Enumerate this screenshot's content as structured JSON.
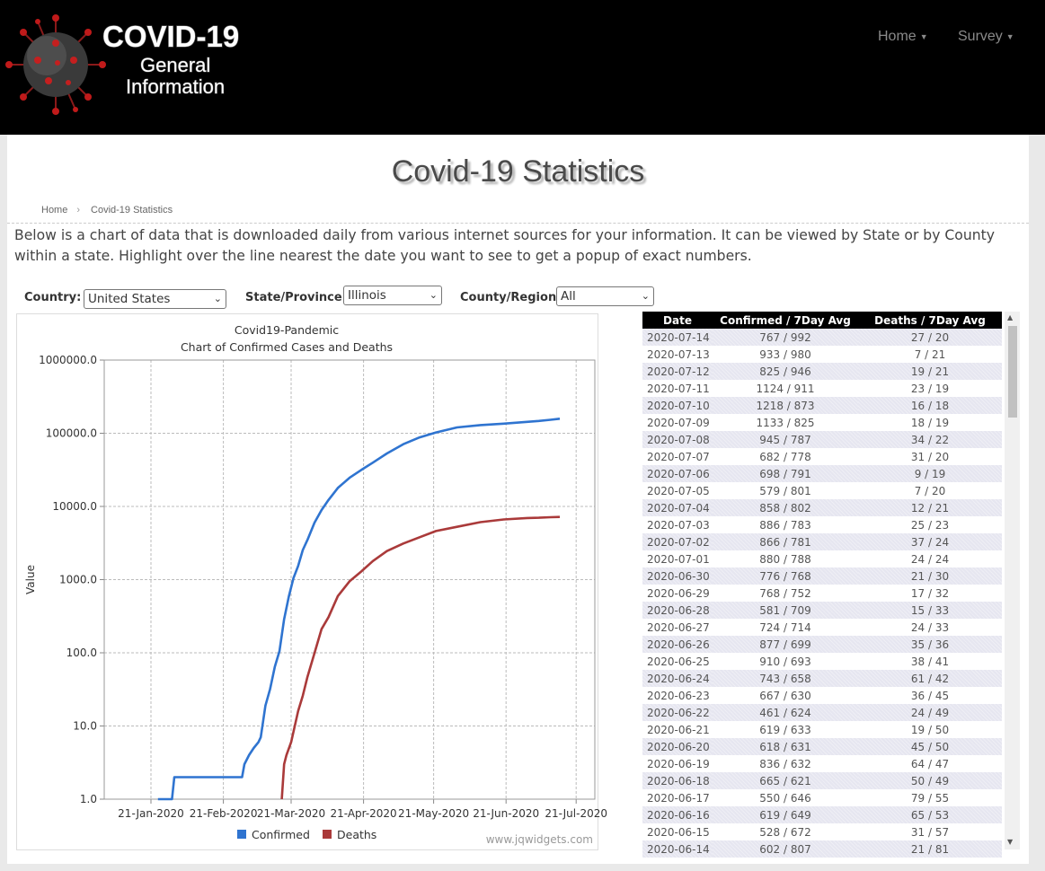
{
  "logo": {
    "line1": "COVID-19",
    "line2": "General",
    "line3": "Information"
  },
  "nav": [
    {
      "label": "Home"
    },
    {
      "label": "Survey"
    }
  ],
  "page_title": "Covid-19 Statistics",
  "breadcrumb": {
    "home": "Home",
    "current": "Covid-19 Statistics"
  },
  "intro": "Below is a chart of data that is downloaded daily from various internet sources for your information. It can be viewed by State or by County within a state. Highlight over the line nearest the date you want to see to get a popup of exact numbers.",
  "filters": {
    "country_label": "Country:",
    "country_value": "United States",
    "state_label": "State/Province:",
    "state_value": "Illinois",
    "county_label": "County/Region",
    "county_value": "All"
  },
  "chart_data": {
    "type": "line",
    "title": "Covid19-Pandemic",
    "subtitle": "Chart of Confirmed Cases and Deaths",
    "ylabel": "Value",
    "xlabel": "",
    "yscale": "log",
    "ylim": [
      1,
      1000000
    ],
    "y_ticks": [
      "1000000.0",
      "100000.0",
      "10000.0",
      "1000.0",
      "100.0",
      "10.0",
      "1.0"
    ],
    "x_ticks": [
      "21-Jan-2020",
      "21-Feb-2020",
      "21-Mar-2020",
      "21-Apr-2020",
      "21-May-2020",
      "21-Jun-2020",
      "21-Jul-2020"
    ],
    "xlim": [
      "2020-01-01",
      "2020-07-29"
    ],
    "grid": true,
    "legend_position": "bottom",
    "watermark": "www.jqwidgets.com",
    "series": [
      {
        "name": "Confirmed",
        "color": "#2f74d0",
        "points": [
          [
            "2020-01-24",
            1
          ],
          [
            "2020-01-30",
            1
          ],
          [
            "2020-01-31",
            2
          ],
          [
            "2020-02-29",
            2
          ],
          [
            "2020-03-01",
            3
          ],
          [
            "2020-03-03",
            4
          ],
          [
            "2020-03-05",
            5
          ],
          [
            "2020-03-07",
            6
          ],
          [
            "2020-03-08",
            7
          ],
          [
            "2020-03-10",
            19
          ],
          [
            "2020-03-12",
            32
          ],
          [
            "2020-03-14",
            64
          ],
          [
            "2020-03-16",
            105
          ],
          [
            "2020-03-18",
            288
          ],
          [
            "2020-03-20",
            585
          ],
          [
            "2020-03-22",
            1049
          ],
          [
            "2020-03-24",
            1535
          ],
          [
            "2020-03-26",
            2538
          ],
          [
            "2020-03-28",
            3491
          ],
          [
            "2020-03-31",
            5994
          ],
          [
            "2020-04-03",
            8904
          ],
          [
            "2020-04-06",
            12262
          ],
          [
            "2020-04-10",
            17887
          ],
          [
            "2020-04-15",
            24593
          ],
          [
            "2020-04-20",
            31508
          ],
          [
            "2020-04-25",
            39658
          ],
          [
            "2020-05-01",
            52918
          ],
          [
            "2020-05-08",
            70873
          ],
          [
            "2020-05-15",
            87937
          ],
          [
            "2020-05-22",
            102686
          ],
          [
            "2020-05-31",
            120260
          ],
          [
            "2020-06-10",
            129212
          ],
          [
            "2020-06-20",
            135470
          ],
          [
            "2020-06-30",
            143185
          ],
          [
            "2020-07-05",
            147251
          ],
          [
            "2020-07-10",
            152899
          ],
          [
            "2020-07-14",
            157950
          ]
        ]
      },
      {
        "name": "Deaths",
        "color": "#aa3a3a",
        "points": [
          [
            "2020-03-17",
            1
          ],
          [
            "2020-03-18",
            3
          ],
          [
            "2020-03-19",
            4
          ],
          [
            "2020-03-21",
            6
          ],
          [
            "2020-03-24",
            16
          ],
          [
            "2020-03-26",
            26
          ],
          [
            "2020-03-28",
            47
          ],
          [
            "2020-03-31",
            99
          ],
          [
            "2020-04-03",
            210
          ],
          [
            "2020-04-06",
            307
          ],
          [
            "2020-04-10",
            596
          ],
          [
            "2020-04-15",
            948
          ],
          [
            "2020-04-20",
            1290
          ],
          [
            "2020-04-25",
            1795
          ],
          [
            "2020-05-01",
            2457
          ],
          [
            "2020-05-08",
            3111
          ],
          [
            "2020-05-15",
            3792
          ],
          [
            "2020-05-22",
            4607
          ],
          [
            "2020-05-31",
            5270
          ],
          [
            "2020-06-10",
            6095
          ],
          [
            "2020-06-20",
            6647
          ],
          [
            "2020-06-30",
            6951
          ],
          [
            "2020-07-05",
            7010
          ],
          [
            "2020-07-10",
            7119
          ],
          [
            "2020-07-14",
            7193
          ]
        ]
      }
    ]
  },
  "table": {
    "headers": [
      "Date",
      "Confirmed / 7Day Avg",
      "Deaths / 7Day Avg"
    ],
    "rows": [
      [
        "2020-07-14",
        "767 / 992",
        "27 / 20"
      ],
      [
        "2020-07-13",
        "933 / 980",
        "7 / 21"
      ],
      [
        "2020-07-12",
        "825 / 946",
        "19 / 21"
      ],
      [
        "2020-07-11",
        "1124 / 911",
        "23 / 19"
      ],
      [
        "2020-07-10",
        "1218 / 873",
        "16 / 18"
      ],
      [
        "2020-07-09",
        "1133 / 825",
        "18 / 19"
      ],
      [
        "2020-07-08",
        "945 / 787",
        "34 / 22"
      ],
      [
        "2020-07-07",
        "682 / 778",
        "31 / 20"
      ],
      [
        "2020-07-06",
        "698 / 791",
        "9 / 19"
      ],
      [
        "2020-07-05",
        "579 / 801",
        "7 / 20"
      ],
      [
        "2020-07-04",
        "858 / 802",
        "12 / 21"
      ],
      [
        "2020-07-03",
        "886 / 783",
        "25 / 23"
      ],
      [
        "2020-07-02",
        "866 / 781",
        "37 / 24"
      ],
      [
        "2020-07-01",
        "880 / 788",
        "24 / 24"
      ],
      [
        "2020-06-30",
        "776 / 768",
        "21 / 30"
      ],
      [
        "2020-06-29",
        "768 / 752",
        "17 / 32"
      ],
      [
        "2020-06-28",
        "581 / 709",
        "15 / 33"
      ],
      [
        "2020-06-27",
        "724 / 714",
        "24 / 33"
      ],
      [
        "2020-06-26",
        "877 / 699",
        "35 / 36"
      ],
      [
        "2020-06-25",
        "910 / 693",
        "38 / 41"
      ],
      [
        "2020-06-24",
        "743 / 658",
        "61 / 42"
      ],
      [
        "2020-06-23",
        "667 / 630",
        "36 / 45"
      ],
      [
        "2020-06-22",
        "461 / 624",
        "24 / 49"
      ],
      [
        "2020-06-21",
        "619 / 633",
        "19 / 50"
      ],
      [
        "2020-06-20",
        "618 / 631",
        "45 / 50"
      ],
      [
        "2020-06-19",
        "836 / 632",
        "64 / 47"
      ],
      [
        "2020-06-18",
        "665 / 621",
        "50 / 49"
      ],
      [
        "2020-06-17",
        "550 / 646",
        "79 / 55"
      ],
      [
        "2020-06-16",
        "619 / 649",
        "65 / 53"
      ],
      [
        "2020-06-15",
        "528 / 672",
        "31 / 57"
      ],
      [
        "2020-06-14",
        "602 / 807",
        "21 / 81"
      ]
    ]
  }
}
